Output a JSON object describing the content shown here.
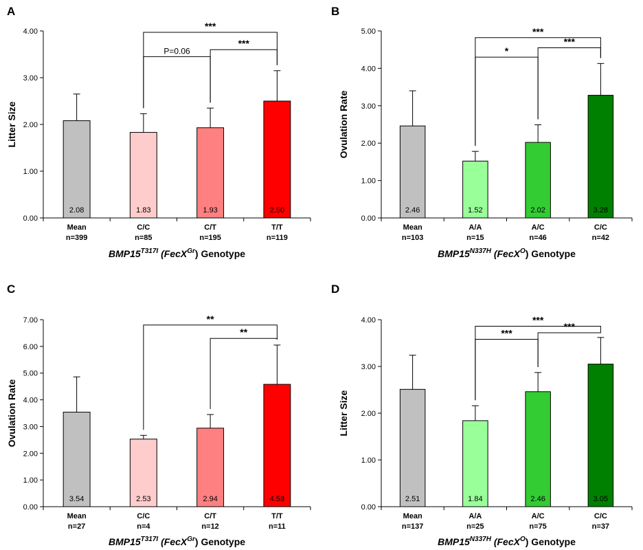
{
  "chart_data": [
    {
      "panel": "A",
      "type": "bar",
      "ylabel": "Litter Size",
      "ylim": [
        0,
        4
      ],
      "yticks": [
        "0.00",
        "1.00",
        "2.00",
        "3.00",
        "4.00"
      ],
      "categories": [
        "Mean",
        "C/C",
        "C/T",
        "T/T"
      ],
      "n_labels": [
        "n=399",
        "n=85",
        "n=195",
        "n=119"
      ],
      "values": [
        2.08,
        1.83,
        1.93,
        2.5
      ],
      "value_labels": [
        "2.08",
        "1.83",
        "1.93",
        "2.50"
      ],
      "errors": [
        0.57,
        0.4,
        0.42,
        0.65
      ],
      "colors": [
        "#c0c0c0",
        "#ffcccc",
        "#ff8080",
        "#ff0000"
      ],
      "xlabel": {
        "gene": "BMP15",
        "sup1": "T317I",
        "mid": " (",
        "allele": "FecX",
        "sup2": "Gr",
        "tail": ") Genotype"
      },
      "brackets": [
        {
          "from": 1,
          "to": 3,
          "label": "***",
          "level": 3.97
        },
        {
          "from": 1,
          "to": 2,
          "label": "P=0.06",
          "level": 3.45
        },
        {
          "from": 2,
          "to": 3,
          "label": "***",
          "level": 3.6
        }
      ]
    },
    {
      "panel": "B",
      "type": "bar",
      "ylabel": "Ovulation Rate",
      "ylim": [
        0,
        5
      ],
      "yticks": [
        "0.00",
        "1.00",
        "2.00",
        "3.00",
        "4.00",
        "5.00"
      ],
      "categories": [
        "Mean",
        "A/A",
        "A/C",
        "C/C"
      ],
      "n_labels": [
        "n=103",
        "n=15",
        "n=46",
        "n=42"
      ],
      "values": [
        2.46,
        1.52,
        2.02,
        3.28
      ],
      "value_labels": [
        "2.46",
        "1.52",
        "2.02",
        "3.28"
      ],
      "errors": [
        0.94,
        0.26,
        0.47,
        0.85
      ],
      "colors": [
        "#c0c0c0",
        "#99ff99",
        "#33cc33",
        "#008000"
      ],
      "xlabel": {
        "gene": "BMP15",
        "sup1": "N337H",
        "mid": " (",
        "allele": "FecX",
        "sup2": "O",
        "tail": ") Genotype"
      },
      "brackets": [
        {
          "from": 1,
          "to": 3,
          "label": "***",
          "level": 4.82
        },
        {
          "from": 1,
          "to": 2,
          "label": "*",
          "level": 4.3
        },
        {
          "from": 2,
          "to": 3,
          "label": "***",
          "level": 4.55
        }
      ]
    },
    {
      "panel": "C",
      "type": "bar",
      "ylabel": "Ovulation Rate",
      "ylim": [
        0,
        7
      ],
      "yticks": [
        "0.00",
        "1.00",
        "2.00",
        "3.00",
        "4.00",
        "5.00",
        "6.00",
        "7.00"
      ],
      "categories": [
        "Mean",
        "C/C",
        "C/T",
        "T/T"
      ],
      "n_labels": [
        "n=27",
        "n=4",
        "n=12",
        "n=11"
      ],
      "values": [
        3.54,
        2.53,
        2.94,
        4.58
      ],
      "value_labels": [
        "3.54",
        "2.53",
        "2.94",
        "4.58"
      ],
      "errors": [
        1.32,
        0.14,
        0.51,
        1.47
      ],
      "colors": [
        "#c0c0c0",
        "#ffcccc",
        "#ff8080",
        "#ff0000"
      ],
      "xlabel": {
        "gene": "BMP15",
        "sup1": "T317I",
        "mid": " (",
        "allele": "FecX",
        "sup2": "Gr",
        "tail": ") Genotype"
      },
      "brackets": [
        {
          "from": 1,
          "to": 3,
          "label": "**",
          "level": 6.8
        },
        {
          "from": 2,
          "to": 3,
          "label": "**",
          "level": 6.3
        }
      ]
    },
    {
      "panel": "D",
      "type": "bar",
      "ylabel": "Litter Size",
      "ylim": [
        0,
        4
      ],
      "yticks": [
        "0.00",
        "1.00",
        "2.00",
        "3.00",
        "4.00"
      ],
      "categories": [
        "Mean",
        "A/A",
        "A/C",
        "C/C"
      ],
      "n_labels": [
        "n=137",
        "n=25",
        "n=75",
        "n=37"
      ],
      "values": [
        2.51,
        1.84,
        2.46,
        3.05
      ],
      "value_labels": [
        "2.51",
        "1.84",
        "2.46",
        "3.05"
      ],
      "errors": [
        0.73,
        0.32,
        0.41,
        0.57
      ],
      "colors": [
        "#c0c0c0",
        "#99ff99",
        "#33cc33",
        "#008000"
      ],
      "xlabel": {
        "gene": "BMP15",
        "sup1": "N337H",
        "mid": " (",
        "allele": "FecX",
        "sup2": "O",
        "tail": ") Genotype"
      },
      "brackets": [
        {
          "from": 1,
          "to": 3,
          "label": "***",
          "level": 3.86
        },
        {
          "from": 1,
          "to": 2,
          "label": "***",
          "level": 3.58
        },
        {
          "from": 2,
          "to": 3,
          "label": "***",
          "level": 3.72
        }
      ]
    }
  ]
}
